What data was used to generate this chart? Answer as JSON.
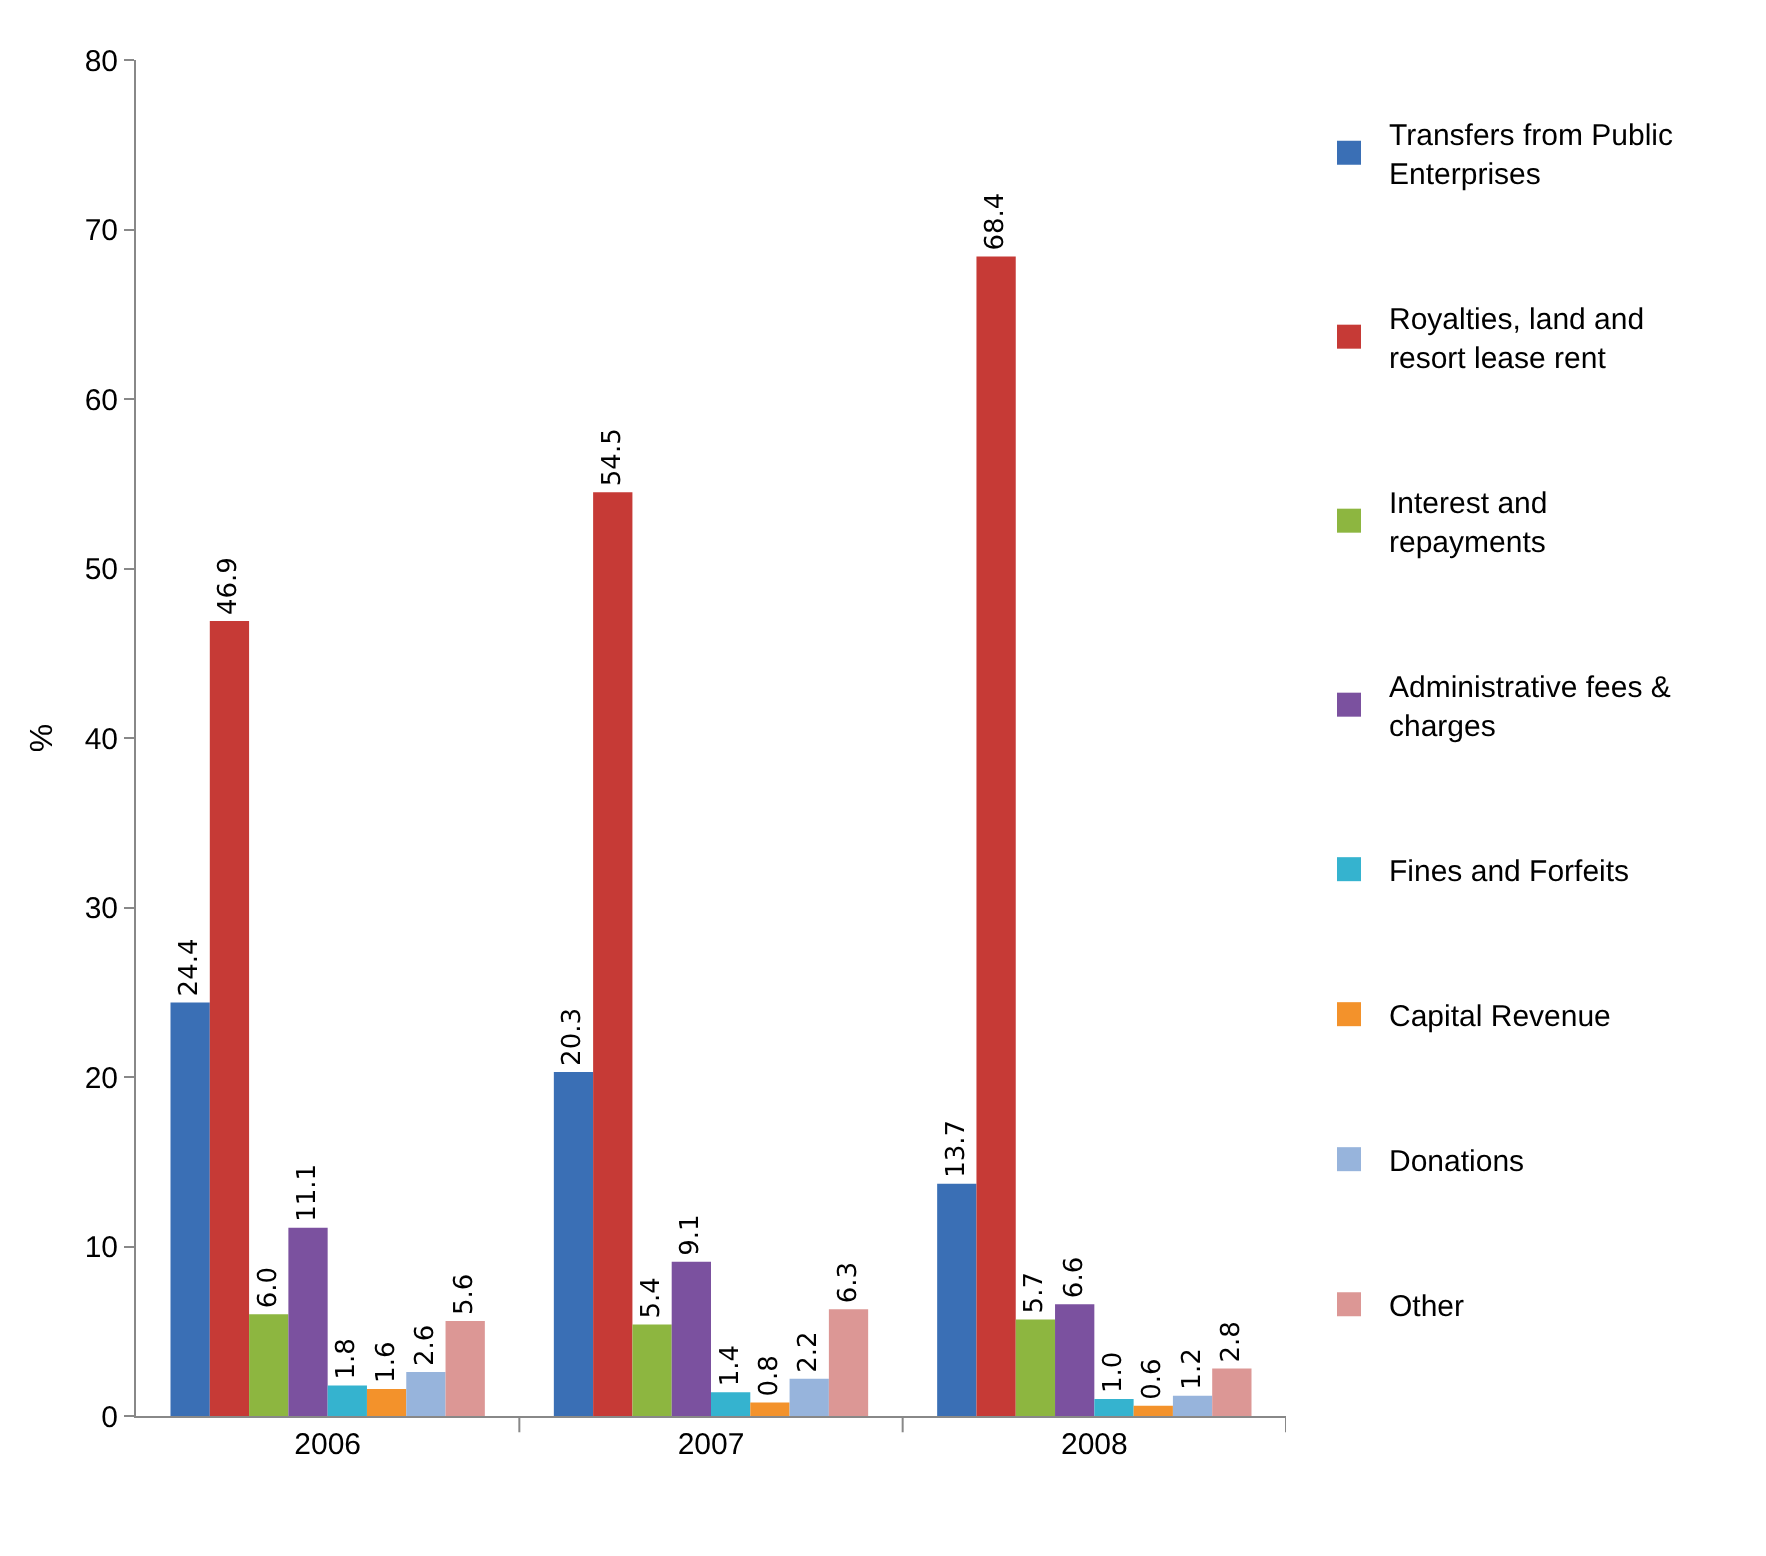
{
  "chart_data": {
    "type": "bar",
    "ylabel": "%",
    "categories": [
      "2006",
      "2007",
      "2008"
    ],
    "ylim": [
      0,
      80
    ],
    "yticks": [
      0,
      10,
      20,
      30,
      40,
      50,
      60,
      70,
      80
    ],
    "legend": "right",
    "series": [
      {
        "name": "Transfers from Public Enterprises",
        "color": "#3a6fb5",
        "values": [
          24.4,
          20.3,
          13.7
        ],
        "value_labels": [
          "24.4",
          "20.3",
          "13.7"
        ]
      },
      {
        "name": "Royalties, land and resort lease rent",
        "color": "#c63a36",
        "values": [
          46.9,
          54.5,
          68.4
        ],
        "value_labels": [
          "46.9",
          "54.5",
          "68.4"
        ]
      },
      {
        "name": "Interest and repayments",
        "color": "#8db640",
        "values": [
          6.0,
          5.4,
          5.7
        ],
        "value_labels": [
          "6.0",
          "5.4",
          "5.7"
        ]
      },
      {
        "name": "Administrative fees & charges",
        "color": "#7b519f",
        "values": [
          11.1,
          9.1,
          6.6
        ],
        "value_labels": [
          "11.1",
          "9.1",
          "6.6"
        ]
      },
      {
        "name": "Fines and Forfeits",
        "color": "#35b3cf",
        "values": [
          1.8,
          1.4,
          1.0
        ],
        "value_labels": [
          "1.8",
          "1.4",
          "1.0"
        ]
      },
      {
        "name": "Capital Revenue",
        "color": "#f3922b",
        "values": [
          1.6,
          0.8,
          0.6
        ],
        "value_labels": [
          "1.6",
          "0.8",
          "0.6"
        ]
      },
      {
        "name": "Donations",
        "color": "#97b4dc",
        "values": [
          2.6,
          2.2,
          1.2
        ],
        "value_labels": [
          "2.6",
          "2.2",
          "1.2"
        ]
      },
      {
        "name": "Other",
        "color": "#dc9795",
        "values": [
          5.6,
          6.3,
          2.8
        ],
        "value_labels": [
          "5.6",
          "6.3",
          "2.8"
        ]
      }
    ]
  }
}
